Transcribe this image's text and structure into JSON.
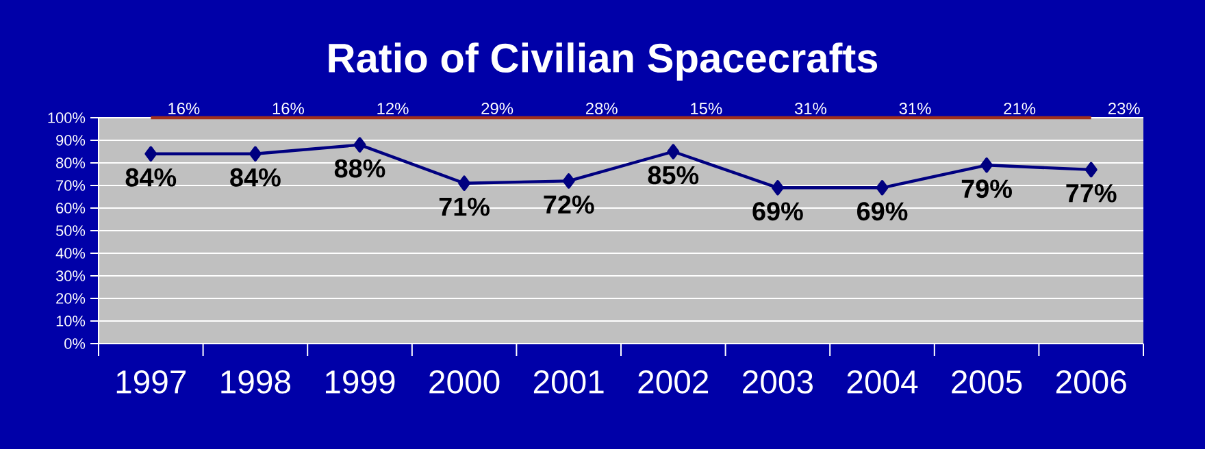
{
  "chart_data": {
    "type": "line",
    "title": "Ratio of Civilian Spacecrafts",
    "grid": "y",
    "categories": [
      "1997",
      "1998",
      "1999",
      "2000",
      "2001",
      "2002",
      "2003",
      "2004",
      "2005",
      "2006"
    ],
    "series": [
      {
        "color": "#000080",
        "values": [
          84,
          84,
          88,
          71,
          72,
          85,
          69,
          69,
          79,
          77
        ],
        "value_labels": [
          "84%",
          "84%",
          "88%",
          "71%",
          "72%",
          "85%",
          "69%",
          "69%",
          "79%",
          "77%"
        ]
      }
    ],
    "marker": "diamond",
    "ref_lines": [
      {
        "axis": "y",
        "value": 100,
        "color": "#a0301e"
      }
    ],
    "annotations": [
      {
        "text": "16%",
        "x": "1997",
        "y": 100
      },
      {
        "text": "16%",
        "x": "1998",
        "y": 100
      },
      {
        "text": "12%",
        "x": "1999",
        "y": 100
      },
      {
        "text": "29%",
        "x": "2000",
        "y": 100
      },
      {
        "text": "28%",
        "x": "2001",
        "y": 100
      },
      {
        "text": "15%",
        "x": "2002",
        "y": 100
      },
      {
        "text": "31%",
        "x": "2003",
        "y": 100
      },
      {
        "text": "31%",
        "x": "2004",
        "y": 100
      },
      {
        "text": "21%",
        "x": "2005",
        "y": 100
      },
      {
        "text": "23%",
        "x": "2006",
        "y": 100
      }
    ],
    "ylim": [
      0,
      100
    ],
    "yticks": [
      {
        "value": 0,
        "label": "0%"
      },
      {
        "value": 10,
        "label": "10%"
      },
      {
        "value": 20,
        "label": "20%"
      },
      {
        "value": 30,
        "label": "30%"
      },
      {
        "value": 40,
        "label": "40%"
      },
      {
        "value": 50,
        "label": "50%"
      },
      {
        "value": 60,
        "label": "60%"
      },
      {
        "value": 70,
        "label": "70%"
      },
      {
        "value": 80,
        "label": "80%"
      },
      {
        "value": 90,
        "label": "90%"
      },
      {
        "value": 100,
        "label": "100%"
      }
    ]
  }
}
